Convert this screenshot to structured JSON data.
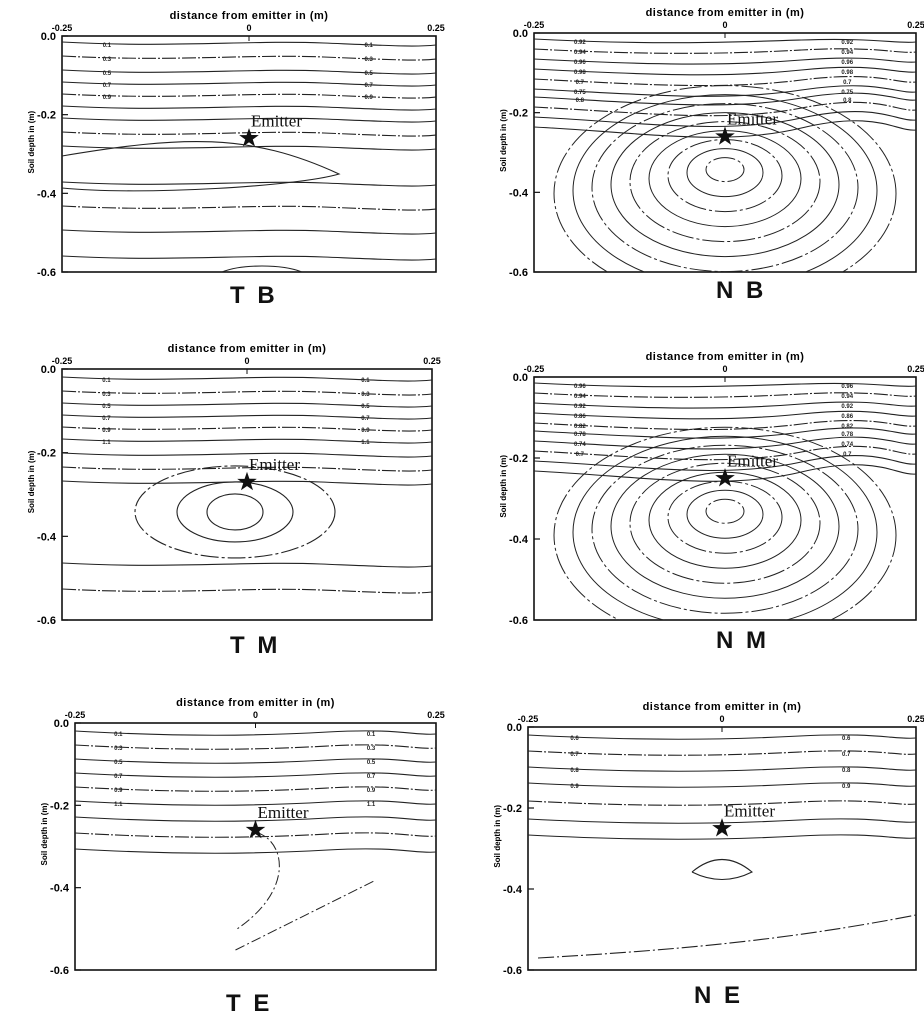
{
  "figure": {
    "emitter_label": "Emitter",
    "x_axis_title": "distance from emitter in (m)",
    "y_axis_title": "Soil depth in (m)"
  },
  "chart_data": [
    {
      "type": "contour",
      "panel_label": "T B",
      "xlabel": "distance from emitter in (m)",
      "ylabel": "Soil depth in (m)",
      "x_ticks": [
        "-0.25",
        "0",
        "0.25"
      ],
      "y_ticks": [
        "0.0",
        "-0.2",
        "-0.4",
        "-0.6"
      ],
      "xlim": [
        -0.25,
        0.25
      ],
      "ylim": [
        -0.6,
        0.0
      ],
      "emitter": {
        "x": 0.0,
        "y": -0.26,
        "label": "Emitter"
      },
      "contour_level_labels": [
        "0.1",
        "0.3",
        "0.5",
        "0.7",
        "0.9"
      ],
      "grid": false
    },
    {
      "type": "contour",
      "panel_label": "N B",
      "xlabel": "distance from emitter in (m)",
      "ylabel": "Soil depth in (m)",
      "x_ticks": [
        "-0.25",
        "0",
        "0.25"
      ],
      "y_ticks": [
        "0.0",
        "-0.2",
        "-0.4",
        "-0.6"
      ],
      "xlim": [
        -0.25,
        0.25
      ],
      "ylim": [
        -0.6,
        0.0
      ],
      "emitter": {
        "x": 0.0,
        "y": -0.26,
        "label": "Emitter"
      },
      "contour_level_labels": [
        "0.92",
        "0.94",
        "0.96",
        "0.98",
        "0.7",
        "0.75",
        "0.8"
      ],
      "grid": false
    },
    {
      "type": "contour",
      "panel_label": "T M",
      "xlabel": "distance from emitter in (m)",
      "ylabel": "Soil depth in (m)",
      "x_ticks": [
        "-0.25",
        "0",
        "0.25"
      ],
      "y_ticks": [
        "0.0",
        "-0.2",
        "-0.4",
        "-0.6"
      ],
      "xlim": [
        -0.25,
        0.25
      ],
      "ylim": [
        -0.6,
        0.0
      ],
      "emitter": {
        "x": 0.0,
        "y": -0.27,
        "label": "Emitter"
      },
      "contour_level_labels": [
        "0.1",
        "0.3",
        "0.5",
        "0.7",
        "0.9",
        "1.1"
      ],
      "grid": false
    },
    {
      "type": "contour",
      "panel_label": "N M",
      "xlabel": "distance from emitter in (m)",
      "ylabel": "Soil depth in (m)",
      "x_ticks": [
        "-0.25",
        "0",
        "0.25"
      ],
      "y_ticks": [
        "0.0",
        "-0.2",
        "-0.4",
        "-0.6"
      ],
      "xlim": [
        -0.25,
        0.25
      ],
      "ylim": [
        -0.6,
        0.0
      ],
      "emitter": {
        "x": 0.0,
        "y": -0.25,
        "label": "Emitter"
      },
      "contour_level_labels": [
        "0.96",
        "0.94",
        "0.92",
        "0.86",
        "0.82",
        "0.78",
        "0.74",
        "0.7"
      ],
      "grid": false
    },
    {
      "type": "contour",
      "panel_label": "T E",
      "xlabel": "distance from emitter in (m)",
      "ylabel": "Soil depth in (m)",
      "x_ticks": [
        "-0.25",
        "0",
        "0.25"
      ],
      "y_ticks": [
        "0.0",
        "-0.2",
        "-0.4",
        "-0.6"
      ],
      "xlim": [
        -0.25,
        0.25
      ],
      "ylim": [
        -0.6,
        0.0
      ],
      "emitter": {
        "x": 0.0,
        "y": -0.26,
        "label": "Emitter"
      },
      "contour_level_labels": [
        "0.1",
        "0.3",
        "0.5",
        "0.7",
        "0.9",
        "1.1"
      ],
      "grid": false
    },
    {
      "type": "contour",
      "panel_label": "N E",
      "xlabel": "distance from emitter in (m)",
      "ylabel": "Soil depth in (m)",
      "x_ticks": [
        "-0.25",
        "0",
        "0.25"
      ],
      "y_ticks": [
        "0.0",
        "-0.2",
        "-0.4",
        "-0.6"
      ],
      "xlim": [
        -0.25,
        0.25
      ],
      "ylim": [
        -0.6,
        0.0
      ],
      "emitter": {
        "x": 0.0,
        "y": -0.25,
        "label": "Emitter"
      },
      "contour_level_labels": [
        "0.6",
        "0.7",
        "0.8",
        "0.9"
      ],
      "grid": false
    }
  ]
}
